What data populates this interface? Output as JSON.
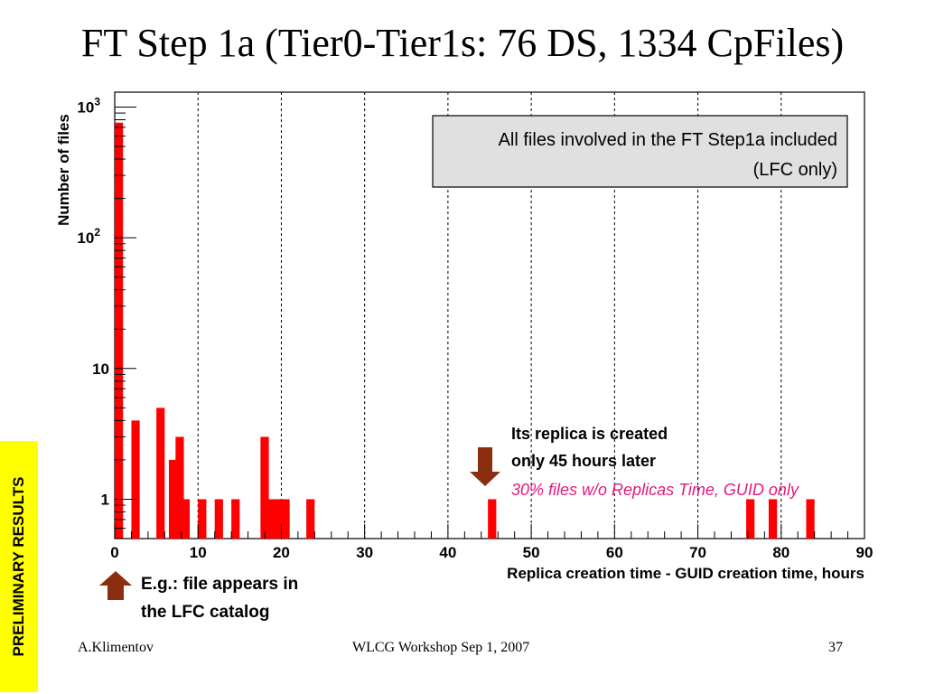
{
  "slide": {
    "title": "FT Step 1a (Tier0-Tier1s: 76 DS, 1334 CpFiles)",
    "preliminary_label": "PRELIMINARY RESULTS",
    "footer": {
      "author": "A.Klimentov",
      "event": "WLCG Workshop Sep 1, 2007",
      "page": "37"
    }
  },
  "colors": {
    "bar": "#ff0000",
    "arrow": "#8b2e0f",
    "italic_note": "#e0197d",
    "legend_bg": "#e0e0e0",
    "highlight_bg": "#ffff00"
  },
  "chart_data": {
    "type": "bar",
    "title": "",
    "xlabel": "Replica creation time - GUID creation time, hours",
    "ylabel": "Number of files",
    "y_scale": "log",
    "xlim": [
      0,
      90
    ],
    "ylim": [
      0.5,
      1300
    ],
    "x_ticks": [
      "0",
      "10",
      "20",
      "30",
      "40",
      "50",
      "60",
      "70",
      "80",
      "90"
    ],
    "y_ticks": [
      {
        "value": 1,
        "label": "1",
        "exp": ""
      },
      {
        "value": 10,
        "label": "10",
        "exp": ""
      },
      {
        "value": 100,
        "label": "10",
        "exp": "2"
      },
      {
        "value": 1000,
        "label": "10",
        "exp": "3"
      }
    ],
    "grid": {
      "x": true,
      "y": false
    },
    "bin_width": 1,
    "bins": [
      {
        "x": 0,
        "count": 760
      },
      {
        "x": 2,
        "count": 4
      },
      {
        "x": 5,
        "count": 5
      },
      {
        "x": 6.5,
        "count": 2
      },
      {
        "x": 7.3,
        "count": 3
      },
      {
        "x": 8,
        "count": 1
      },
      {
        "x": 10,
        "count": 1
      },
      {
        "x": 12,
        "count": 1
      },
      {
        "x": 14,
        "count": 1
      },
      {
        "x": 17.5,
        "count": 3
      },
      {
        "x": 18.3,
        "count": 1
      },
      {
        "x": 19.2,
        "count": 1
      },
      {
        "x": 20,
        "count": 1
      },
      {
        "x": 23,
        "count": 1
      },
      {
        "x": 44.8,
        "count": 1
      },
      {
        "x": 75.8,
        "count": 1
      },
      {
        "x": 78.5,
        "count": 1
      },
      {
        "x": 83,
        "count": 1
      }
    ],
    "legend": {
      "lines": [
        "All files involved in the FT Step1a included",
        "(LFC only)"
      ],
      "placement": "top-right"
    },
    "annotations": {
      "replica_note": [
        "Its replica is created",
        "only 45 hours later"
      ],
      "italic_note": "30% files w/o Replicas Time, GUID only",
      "lfc_note": [
        "E.g.: file appears in",
        "the LFC catalog"
      ]
    }
  }
}
